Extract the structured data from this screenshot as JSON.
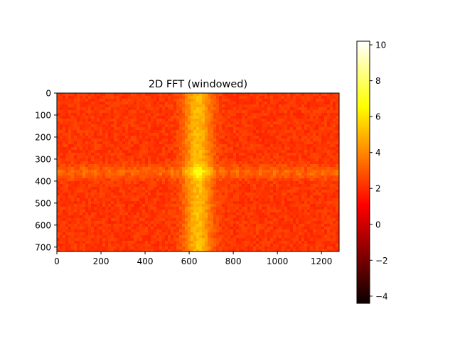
{
  "chart_data": {
    "type": "heatmap",
    "title": "2D FFT (windowed)",
    "xlabel": "",
    "ylabel": "",
    "xlim": [
      0,
      1280
    ],
    "ylim": [
      720,
      0
    ],
    "x_ticks": [
      0,
      200,
      400,
      600,
      800,
      1000,
      1200
    ],
    "y_ticks": [
      0,
      100,
      200,
      300,
      400,
      500,
      600,
      700
    ],
    "colormap": "hot",
    "colorbar": {
      "vmin": -4.4,
      "vmax": 10.2,
      "ticks": [
        -4,
        -2,
        0,
        2,
        4,
        6,
        8,
        10
      ],
      "tick_labels": [
        "−4",
        "−2",
        "0",
        "2",
        "4",
        "6",
        "8",
        "10"
      ]
    },
    "features": {
      "background_level": 2.1,
      "vertical_band_center_x": 640,
      "vertical_band_peak_level": 5.0,
      "horizontal_band_center_y": 360,
      "horizontal_band_level": 3.4,
      "center_peak_level": 6.0
    },
    "grid": false
  }
}
